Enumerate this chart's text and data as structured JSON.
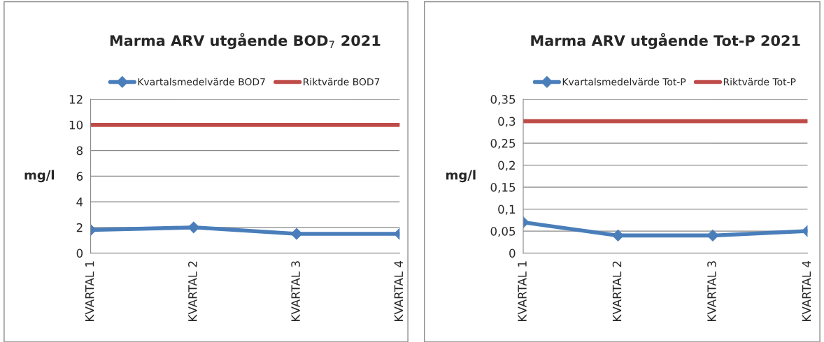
{
  "chart_data": [
    {
      "type": "line",
      "title": "Marma ARV utgående BOD$_{7}$ 2021",
      "ylabel": "mg/l",
      "categories": [
        "KVARTAL 1",
        "KVARTAL 2",
        "KVARTAL 3",
        "KVARTAL 4"
      ],
      "series": [
        {
          "name": "Kvartalsmedelvärde BOD7",
          "color": "#4a7ebb",
          "values": [
            1.8,
            2.0,
            1.5,
            1.5
          ],
          "marker": "diamond"
        },
        {
          "name": "Riktvärde BOD7",
          "color": "#be4b48",
          "values": [
            10,
            10,
            10,
            10
          ],
          "marker": "none"
        }
      ],
      "ylim": [
        0,
        12
      ],
      "yticks": [
        0,
        2,
        4,
        6,
        8,
        10,
        12
      ],
      "grid": "y",
      "legend": "top"
    },
    {
      "type": "line",
      "title": "Marma ARV utgående Tot-P 2021",
      "ylabel": "mg/l",
      "categories": [
        "KVARTAL 1",
        "KVARTAL 2",
        "KVARTAL 3",
        "KVARTAL 4"
      ],
      "series": [
        {
          "name": "Kvartalsmedelvärde Tot-P",
          "color": "#4a7ebb",
          "values": [
            0.07,
            0.04,
            0.04,
            0.05
          ],
          "marker": "diamond"
        },
        {
          "name": "Riktvärde Tot-P",
          "color": "#be4b48",
          "values": [
            0.3,
            0.3,
            0.3,
            0.3
          ],
          "marker": "none"
        }
      ],
      "ylim": [
        0,
        0.35
      ],
      "yticks": [
        0,
        {
          "value": 0.05,
          "label": "0,05"
        },
        {
          "value": 0.1,
          "label": "0,1"
        },
        {
          "value": 0.15,
          "label": "0,15"
        },
        {
          "value": 0.2,
          "label": "0,2"
        },
        {
          "value": 0.25,
          "label": "0,25"
        },
        {
          "value": 0.3,
          "label": "0,3"
        },
        {
          "value": 0.35,
          "label": "0,35"
        }
      ],
      "grid": "y",
      "legend": "top"
    }
  ]
}
